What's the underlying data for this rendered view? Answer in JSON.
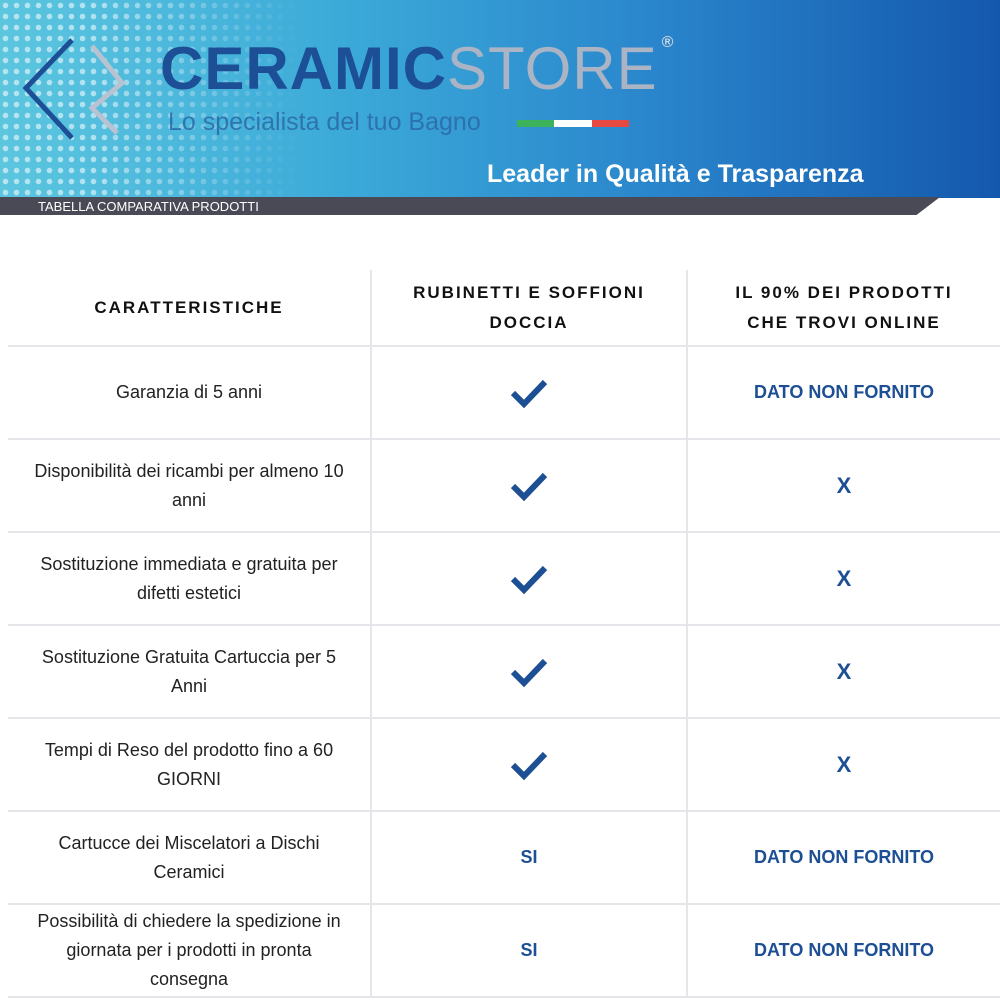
{
  "header": {
    "brand_left": "CERAMIC",
    "brand_right": "STORE",
    "registered": "®",
    "tagline": "Lo specialista del tuo Bagno",
    "slogan": "Leader in Qualità e Trasparenza",
    "subtitle": "TABELLA COMPARATIVA PRODOTTI",
    "flag_colors": [
      "#3cb35a",
      "#ffffff",
      "#e84a43"
    ]
  },
  "table": {
    "headers": [
      "CARATTERISTICHE",
      "RUBINETTI E SOFFIONI DOCCIA",
      "IL 90% DEI PRODOTTI CHE TROVI ONLINE"
    ],
    "rows": [
      {
        "feature": "Garanzia di 5 anni",
        "ours": "check",
        "others": "DATO NON FORNITO"
      },
      {
        "feature": "Disponibilità dei ricambi per almeno 10 anni",
        "ours": "check",
        "others": "X"
      },
      {
        "feature": "Sostituzione immediata e gratuita per difetti estetici",
        "ours": "check",
        "others": "X"
      },
      {
        "feature": "Sostituzione Gratuita Cartuccia per 5 Anni",
        "ours": "check",
        "others": "X"
      },
      {
        "feature": "Tempi di Reso del prodotto fino a 60 GIORNI",
        "ours": "check",
        "others": "X"
      },
      {
        "feature": "Cartucce dei Miscelatori a Dischi Ceramici",
        "ours": "SI",
        "others": "DATO NON FORNITO"
      },
      {
        "feature": "Possibilità di chiedere la spedizione in giornata per i prodotti in pronta consegna",
        "ours": "SI",
        "others": "DATO NON FORNITO"
      }
    ]
  },
  "colors": {
    "accent": "#1d4f94"
  }
}
